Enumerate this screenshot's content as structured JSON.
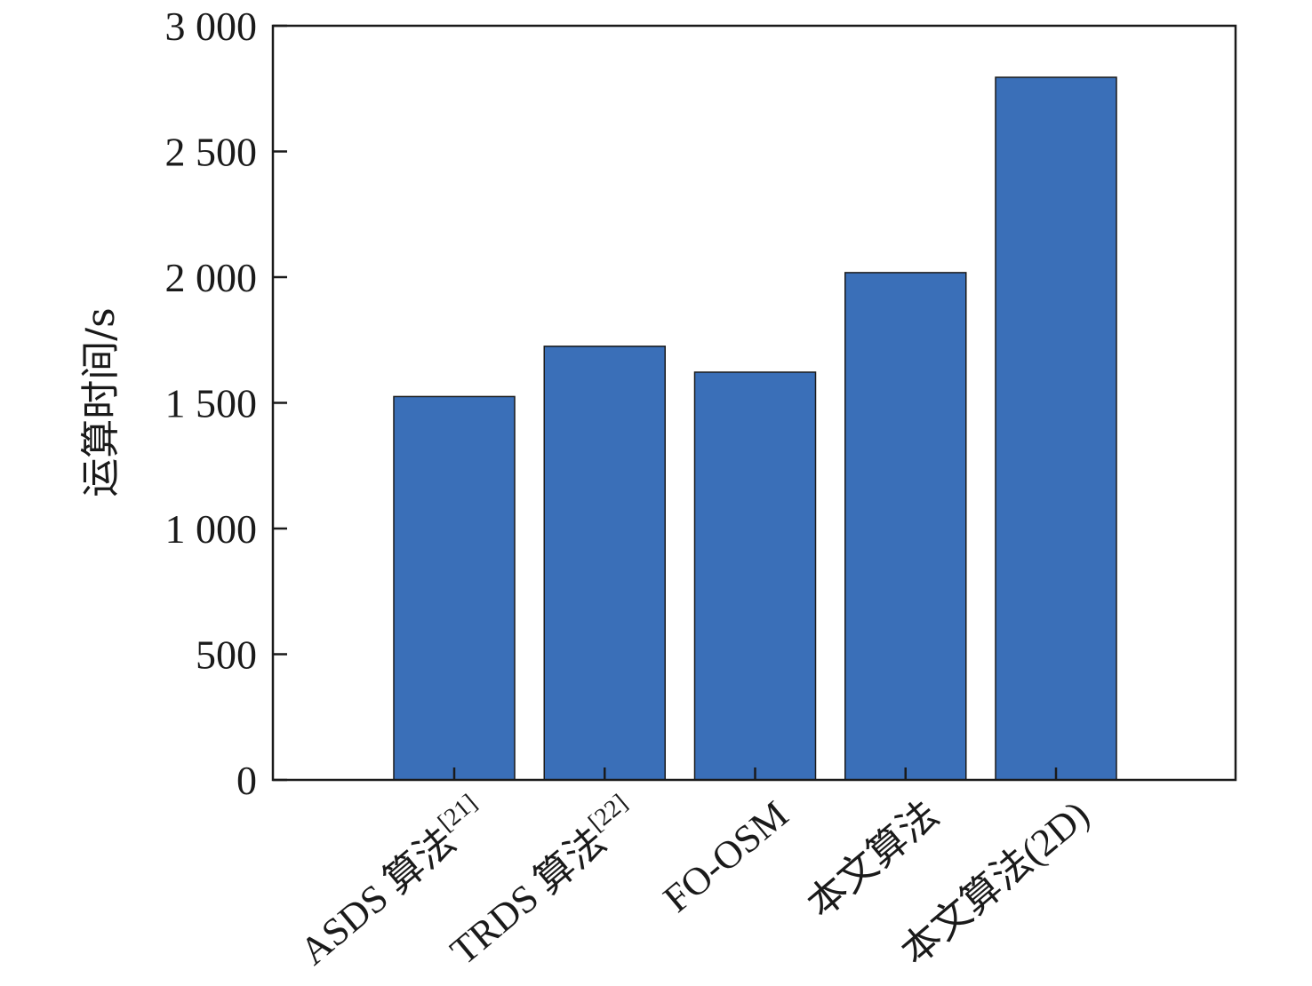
{
  "chart_data": {
    "type": "bar",
    "title": "",
    "xlabel": "",
    "ylabel": "运算时间/s",
    "ylim": [
      0,
      3000
    ],
    "yticks": [
      0,
      500,
      1000,
      1500,
      2000,
      2500,
      3000
    ],
    "ytick_labels": [
      "0",
      "500",
      "1 000",
      "1 500",
      "2 000",
      "2 500",
      "3 000"
    ],
    "categories": [
      {
        "label": "ASDS 算法",
        "sup": "[21]"
      },
      {
        "label": "TRDS 算法",
        "sup": "[22]"
      },
      {
        "label": "FO-OSM",
        "sup": ""
      },
      {
        "label": "本文算法",
        "sup": ""
      },
      {
        "label": "本文算法(2D)",
        "sup": ""
      }
    ],
    "values": [
      1525,
      1725,
      1622,
      2018,
      2795
    ],
    "grid": false,
    "bar_color": "#3a6fb8"
  }
}
